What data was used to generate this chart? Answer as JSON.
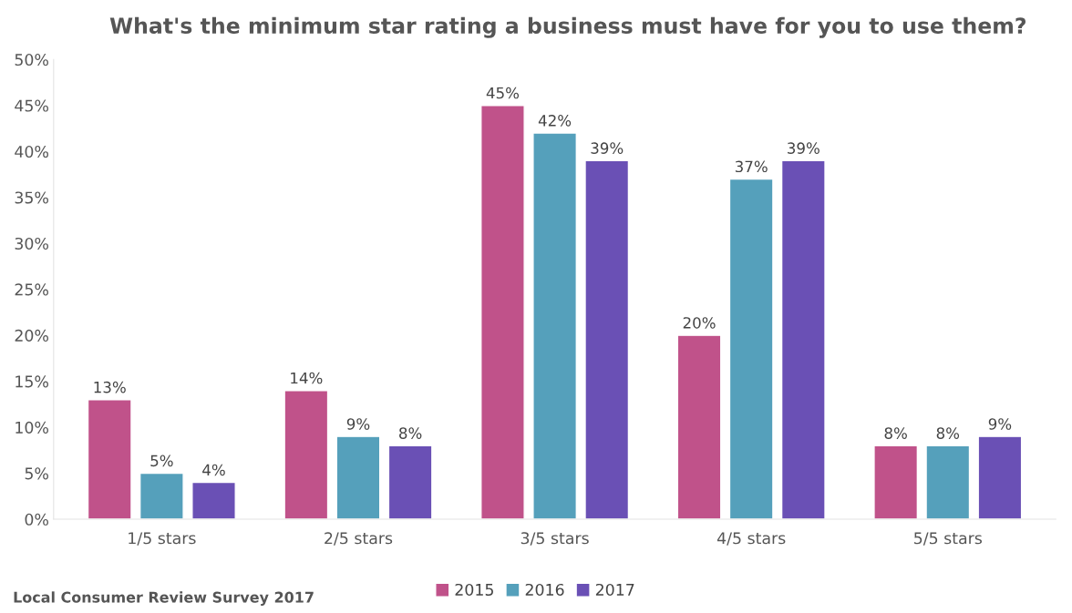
{
  "chart_data": {
    "type": "bar",
    "title": "What's the minimum star rating a business must have for you to use them?",
    "categories": [
      "1/5 stars",
      "2/5 stars",
      "3/5 stars",
      "4/5 stars",
      "5/5 stars"
    ],
    "series": [
      {
        "name": "2015",
        "color": "#c0528a",
        "values": [
          13,
          14,
          45,
          20,
          8
        ],
        "value_labels": [
          "13%",
          "14%",
          "45%",
          "20%",
          "8%"
        ]
      },
      {
        "name": "2016",
        "color": "#55a0bb",
        "values": [
          5,
          9,
          42,
          37,
          8
        ],
        "value_labels": [
          "5%",
          "9%",
          "42%",
          "37%",
          "8%"
        ]
      },
      {
        "name": "2017",
        "color": "#6a50b5",
        "values": [
          4,
          8,
          39,
          39,
          9
        ],
        "value_labels": [
          "4%",
          "8%",
          "39%",
          "39%",
          "9%"
        ]
      }
    ],
    "ylim": [
      0,
      50
    ],
    "yticks": [
      {
        "value": 0,
        "label": "0%"
      },
      {
        "value": 5,
        "label": "5%"
      },
      {
        "value": 10,
        "label": "10%"
      },
      {
        "value": 15,
        "label": "15%"
      },
      {
        "value": 20,
        "label": "20%"
      },
      {
        "value": 25,
        "label": "25%"
      },
      {
        "value": 30,
        "label": "30%"
      },
      {
        "value": 35,
        "label": "35%"
      },
      {
        "value": 40,
        "label": "40%"
      },
      {
        "value": 45,
        "label": "45%"
      },
      {
        "value": 50,
        "label": "50%"
      }
    ],
    "grid": false,
    "legend": "bottom",
    "annotations": [
      "Local Consumer Review Survey 2017"
    ]
  }
}
